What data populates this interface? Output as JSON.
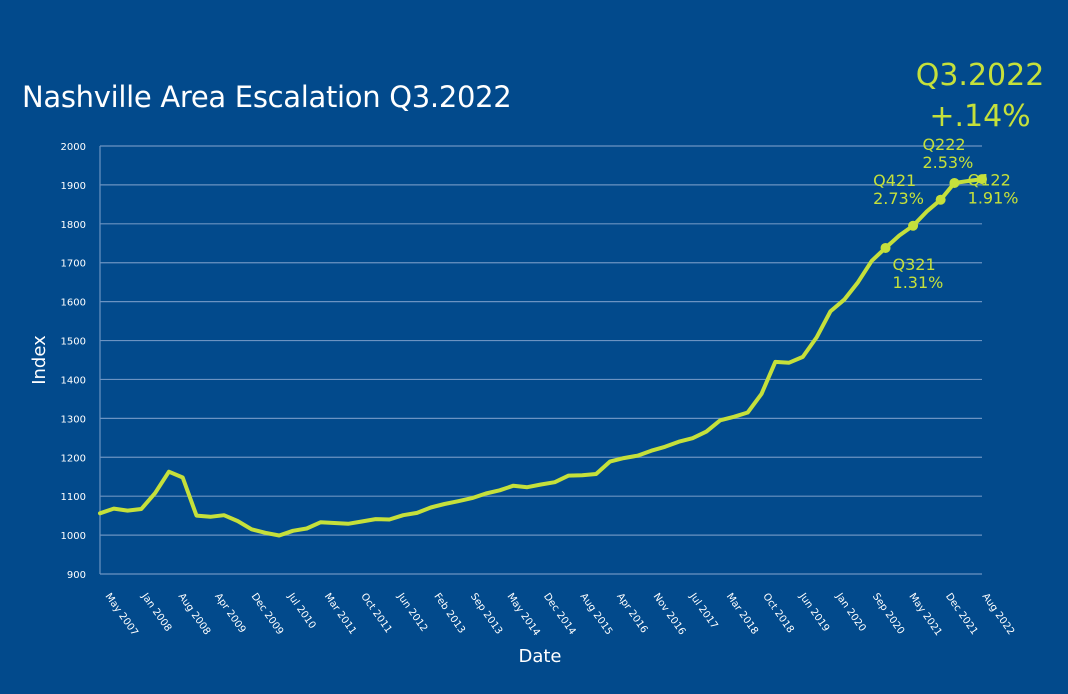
{
  "headline": {
    "quarter": "Q3.2022",
    "change": "+.14%"
  },
  "chart_data": {
    "type": "line",
    "title": "Nashville Area Escalation Q3.2022",
    "xlabel": "Date",
    "ylabel": "Index",
    "ylim": [
      900,
      2000
    ],
    "yticks": [
      900,
      1000,
      1100,
      1200,
      1300,
      1400,
      1500,
      1600,
      1700,
      1800,
      1900,
      2000
    ],
    "grid": true,
    "xticks": [
      "May 2007",
      "Jan 2008",
      "Aug 2008",
      "Apr 2009",
      "Dec 2009",
      "Jul 2010",
      "Mar 2011",
      "Oct 2011",
      "Jun 2012",
      "Feb 2013",
      "Sep 2013",
      "May 2014",
      "Dec 2014",
      "Aug 2015",
      "Apr 2016",
      "Nov 2016",
      "Jul 2017",
      "Mar 2018",
      "Oct 2018",
      "Jun 2019",
      "Jan 2020",
      "Sep 2020",
      "May 2021",
      "Dec 2021",
      "Aug 2022"
    ],
    "color": "#c5e03b",
    "series": [
      {
        "values": [
          1056,
          1068,
          1063,
          1067,
          1108,
          1163,
          1148,
          1050,
          1047,
          1051,
          1036,
          1015,
          1006,
          999,
          1011,
          1017,
          1033,
          1031,
          1029,
          1035,
          1041,
          1040,
          1051,
          1057,
          1071,
          1080,
          1087,
          1095,
          1107,
          1115,
          1127,
          1123,
          1130,
          1136,
          1153,
          1154,
          1157,
          1189,
          1198,
          1204,
          1217,
          1227,
          1240,
          1249,
          1266,
          1295,
          1304,
          1315,
          1363,
          1445,
          1443,
          1458,
          1508,
          1575,
          1605,
          1650,
          1705,
          1738,
          1770,
          1795,
          1832,
          1862,
          1905,
          1910,
          1915
        ]
      }
    ],
    "annotations": [
      {
        "label": "Q321",
        "value": "1.31%",
        "point_index": 57
      },
      {
        "label": "Q421",
        "value": "2.73%",
        "point_index": 59
      },
      {
        "label": "Q122",
        "value": "1.91%",
        "point_index": 61
      },
      {
        "label": "Q222",
        "value": "2.53%",
        "point_index": 62
      },
      {
        "label": "Q322",
        "value": "",
        "point_index": 64
      }
    ]
  }
}
